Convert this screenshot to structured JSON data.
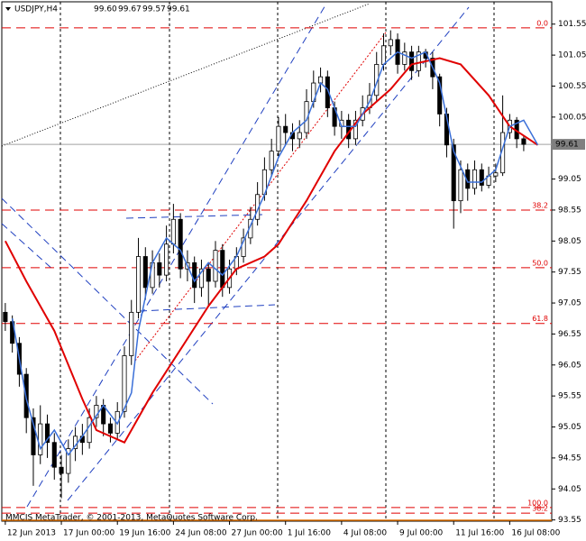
{
  "chart_data": {
    "type": "candlestick",
    "title": "USDJPY,H4",
    "header_values": [
      {
        "value": 99.6,
        "label": "99.60"
      },
      {
        "value": 99.67,
        "label": "99.67"
      },
      {
        "value": 99.57,
        "label": "99.57"
      },
      {
        "value": 99.61,
        "label": "99.61"
      }
    ],
    "footer": "MMCIS MetaTrader, © 2001-2013, MetaQuotes Software Corp.",
    "current_price": 99.61,
    "xlim": [
      -0.5,
      78
    ],
    "ylim": [
      93.53,
      101.91
    ],
    "xticks": [
      {
        "value": 0,
        "label": "12 Jun 2013"
      },
      {
        "value": 8,
        "label": "17 Jun 00:00"
      },
      {
        "value": 16,
        "label": "19 Jun 16:00"
      },
      {
        "value": 24,
        "label": "24 Jun 08:00"
      },
      {
        "value": 32,
        "label": "27 Jun 00:00"
      },
      {
        "value": 40,
        "label": "1 Jul 16:00"
      },
      {
        "value": 48,
        "label": "4 Jul 08:00"
      },
      {
        "value": 56,
        "label": "9 Jul 00:00"
      },
      {
        "value": 64,
        "label": "11 Jul 16:00"
      },
      {
        "value": 72,
        "label": "16 Jul 08:00"
      }
    ],
    "yticks": [
      101.55,
      101.05,
      100.55,
      100.05,
      99.05,
      98.55,
      98.05,
      97.55,
      97.05,
      96.55,
      96.05,
      95.55,
      95.05,
      94.55,
      94.05,
      93.55
    ],
    "up_color": "#ffffff",
    "down_color": "#000000",
    "open": [
      96.9,
      96.75,
      96.4,
      95.9,
      95.2,
      94.6,
      95.1,
      94.8,
      94.4,
      94.3,
      94.7,
      94.9,
      94.8,
      95.2,
      95.4,
      95.1,
      94.95,
      95.3,
      96.2,
      96.9,
      97.8,
      97.3,
      97.7,
      97.5,
      98.0,
      98.4,
      97.6,
      97.7,
      97.3,
      97.6,
      97.4,
      97.9,
      97.3,
      97.6,
      97.8,
      98.1,
      98.4,
      98.8,
      99.2,
      99.5,
      99.9,
      99.8,
      99.7,
      99.8,
      100.3,
      100.6,
      100.7,
      100.2,
      99.9,
      100.0,
      99.7,
      100.0,
      100.2,
      100.4,
      100.9,
      101.2,
      101.3,
      100.9,
      101.1,
      100.8,
      101.1,
      101.0,
      100.7,
      100.1,
      99.6,
      98.7,
      99.2,
      98.9,
      99.2,
      98.95,
      99.1,
      99.15,
      99.8,
      100.0,
      99.7
    ],
    "high": [
      97.05,
      96.85,
      96.5,
      96.0,
      95.35,
      95.4,
      95.25,
      94.95,
      94.6,
      94.85,
      95.05,
      95.1,
      95.35,
      95.55,
      95.5,
      95.2,
      95.45,
      96.35,
      97.1,
      98.1,
      97.95,
      97.9,
      97.85,
      98.3,
      98.65,
      98.5,
      97.9,
      97.8,
      97.75,
      97.7,
      98.05,
      98.0,
      97.75,
      97.95,
      98.25,
      98.6,
      99.0,
      99.4,
      99.7,
      100.05,
      100.1,
      99.95,
      100.0,
      100.5,
      100.8,
      100.85,
      100.8,
      100.3,
      100.15,
      100.1,
      100.15,
      100.4,
      100.6,
      101.1,
      101.4,
      101.45,
      101.4,
      101.25,
      101.2,
      101.2,
      101.15,
      101.1,
      100.75,
      100.2,
      99.7,
      99.35,
      99.3,
      99.35,
      99.3,
      99.25,
      99.3,
      100.4,
      100.1,
      100.05,
      99.75
    ],
    "low": [
      96.6,
      96.25,
      95.7,
      94.95,
      94.1,
      94.45,
      94.55,
      94.2,
      93.9,
      94.15,
      94.5,
      94.6,
      94.7,
      95.05,
      94.9,
      94.8,
      94.85,
      95.2,
      96.05,
      96.8,
      97.1,
      97.2,
      97.3,
      97.4,
      97.85,
      97.45,
      97.4,
      97.05,
      97.15,
      97.0,
      97.3,
      97.15,
      97.2,
      97.5,
      97.7,
      98.0,
      98.3,
      98.7,
      99.1,
      99.4,
      99.6,
      99.5,
      99.55,
      99.7,
      100.2,
      100.45,
      100.05,
      99.75,
      99.7,
      99.55,
      99.6,
      99.9,
      100.1,
      100.3,
      100.8,
      101.05,
      100.75,
      100.8,
      100.65,
      100.7,
      100.85,
      100.5,
      99.9,
      99.4,
      98.25,
      98.5,
      98.7,
      98.8,
      98.85,
      98.9,
      99.0,
      99.1,
      99.7,
      99.55,
      99.5
    ],
    "close": [
      96.75,
      96.4,
      95.9,
      95.2,
      94.6,
      95.1,
      94.8,
      94.4,
      94.3,
      94.7,
      94.9,
      94.8,
      95.2,
      95.4,
      95.1,
      94.95,
      95.3,
      96.2,
      96.9,
      97.8,
      97.3,
      97.7,
      97.5,
      98.0,
      98.4,
      97.6,
      97.7,
      97.3,
      97.6,
      97.4,
      97.9,
      97.3,
      97.6,
      97.8,
      98.1,
      98.4,
      98.8,
      99.2,
      99.5,
      99.9,
      99.8,
      99.7,
      99.8,
      100.3,
      100.6,
      100.7,
      100.2,
      99.9,
      100.0,
      99.7,
      100.0,
      100.2,
      100.4,
      100.9,
      101.2,
      101.3,
      100.9,
      101.1,
      100.8,
      101.1,
      101.0,
      100.7,
      100.1,
      99.6,
      98.7,
      99.2,
      98.9,
      99.2,
      98.95,
      99.1,
      99.15,
      99.8,
      100.0,
      99.7,
      99.61
    ],
    "lines": [
      {
        "color": "#e00000",
        "x": [
          0,
          3,
          7,
          11,
          13,
          17,
          21,
          25,
          29,
          33,
          37,
          39,
          43,
          47,
          51,
          55,
          58,
          62,
          65,
          69,
          72,
          76
        ],
        "values": [
          98.05,
          97.4,
          96.6,
          95.5,
          95.0,
          94.8,
          95.6,
          96.3,
          97.0,
          97.6,
          97.8,
          98.0,
          98.7,
          99.5,
          100.1,
          100.5,
          100.9,
          101.0,
          100.9,
          100.4,
          99.9,
          99.6
        ]
      },
      {
        "color": "#3a6fd8",
        "x": [
          1,
          3,
          5,
          7,
          9,
          11,
          14,
          16,
          18,
          19,
          21,
          23,
          25,
          27,
          29,
          31,
          33,
          35,
          37,
          39,
          41,
          43,
          45,
          46,
          48,
          50,
          52,
          54,
          56,
          58,
          60,
          62,
          64,
          66,
          68,
          70,
          72,
          74,
          76
        ],
        "values": [
          96.8,
          95.5,
          94.7,
          95.0,
          94.6,
          94.9,
          95.4,
          95.1,
          95.6,
          96.6,
          97.7,
          98.1,
          97.9,
          97.4,
          97.7,
          97.5,
          97.8,
          98.3,
          98.8,
          99.4,
          99.8,
          100.0,
          100.6,
          100.5,
          99.9,
          99.9,
          100.3,
          100.9,
          101.1,
          101.0,
          101.1,
          100.6,
          99.5,
          99.0,
          99.0,
          99.2,
          99.9,
          100.0,
          99.6
        ]
      }
    ],
    "fibo": [
      {
        "label": "0.0",
        "price": 101.49
      },
      {
        "label": "38.2",
        "price": 98.55
      },
      {
        "label": "50.0",
        "price": 97.62
      },
      {
        "label": "61.8",
        "price": 96.72
      },
      {
        "label": "100.0",
        "price": 93.75
      },
      {
        "label": "38.2",
        "price": 93.66
      }
    ]
  }
}
